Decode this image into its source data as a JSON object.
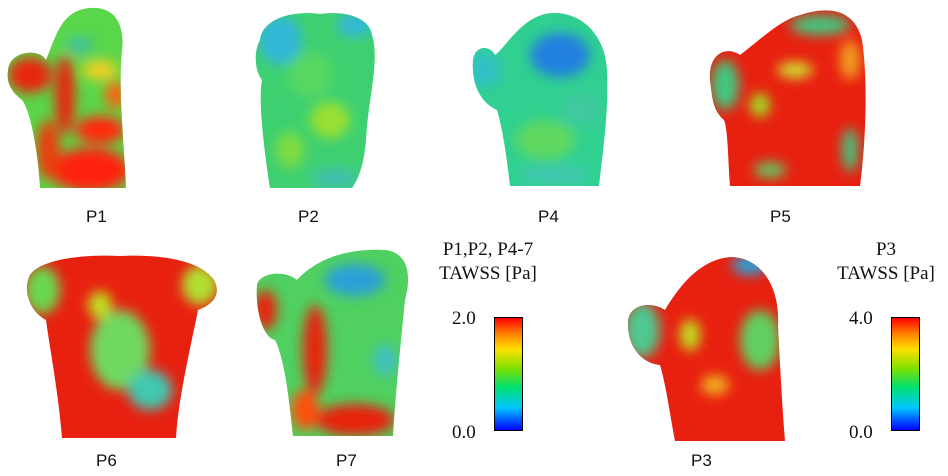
{
  "panels": [
    {
      "label": "P1"
    },
    {
      "label": "P2"
    },
    {
      "label": "P4"
    },
    {
      "label": "P5"
    },
    {
      "label": "P6"
    },
    {
      "label": "P7"
    },
    {
      "label": "P3"
    }
  ],
  "legend_main": {
    "title_line1": "P1,P2, P4-7",
    "title_line2": "TAWSS [Pa]",
    "max": "2.0",
    "min": "0.0"
  },
  "legend_p3": {
    "title_line1": "P3",
    "title_line2": "TAWSS [Pa]",
    "max": "4.0",
    "min": "0.0"
  },
  "colormap": [
    "#0000ff",
    "#00c8ff",
    "#00e070",
    "#7fe000",
    "#ffe000",
    "#ff8000",
    "#ff0000"
  ]
}
